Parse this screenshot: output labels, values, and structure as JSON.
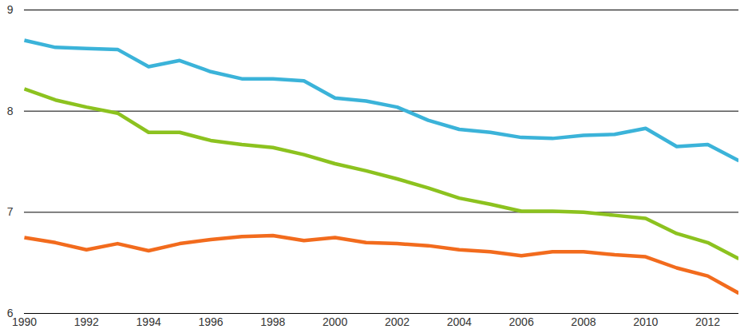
{
  "chart_data": {
    "type": "line",
    "x": [
      1990,
      1991,
      1992,
      1993,
      1994,
      1995,
      1996,
      1997,
      1998,
      1999,
      2000,
      2001,
      2002,
      2003,
      2004,
      2005,
      2006,
      2007,
      2008,
      2009,
      2010,
      2011,
      2012,
      2013
    ],
    "series": [
      {
        "color": "#3bb3d9",
        "values": [
          8.7,
          8.63,
          8.62,
          8.61,
          8.44,
          8.5,
          8.39,
          8.32,
          8.32,
          8.3,
          8.13,
          8.1,
          8.04,
          7.91,
          7.82,
          7.79,
          7.74,
          7.73,
          7.76,
          7.77,
          7.83,
          7.65,
          7.67,
          7.51
        ]
      },
      {
        "color": "#8cc21f",
        "values": [
          8.22,
          8.11,
          8.04,
          7.98,
          7.79,
          7.79,
          7.71,
          7.67,
          7.64,
          7.57,
          7.48,
          7.41,
          7.33,
          7.24,
          7.14,
          7.08,
          7.01,
          7.01,
          7.0,
          6.97,
          6.94,
          6.79,
          6.7,
          6.54
        ]
      },
      {
        "color": "#f26b1d",
        "values": [
          6.75,
          6.7,
          6.63,
          6.69,
          6.62,
          6.69,
          6.73,
          6.76,
          6.77,
          6.72,
          6.75,
          6.7,
          6.69,
          6.67,
          6.63,
          6.61,
          6.57,
          6.61,
          6.61,
          6.58,
          6.56,
          6.45,
          6.37,
          6.2
        ]
      }
    ],
    "xlim": [
      1990,
      2013
    ],
    "xticks": [
      1990,
      1992,
      1994,
      1996,
      1998,
      2000,
      2002,
      2004,
      2006,
      2008,
      2010,
      2012
    ],
    "ylim": [
      6,
      9
    ],
    "yticks": [
      6,
      7,
      8,
      9
    ],
    "grid": true
  }
}
